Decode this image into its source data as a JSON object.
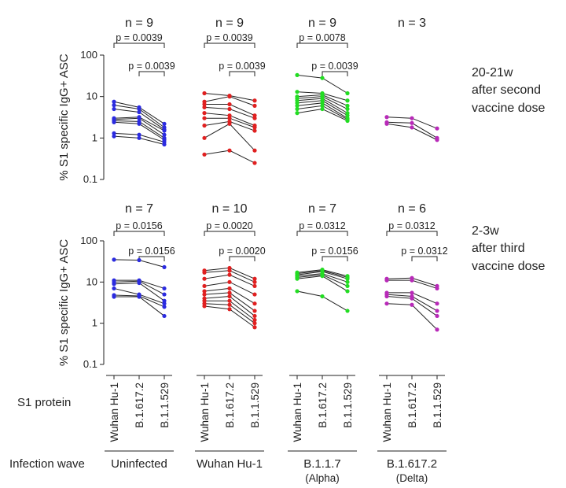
{
  "chart_data": {
    "type": "scatter",
    "title": "",
    "scale": "log",
    "ylabel": "% S1 specific IgG+ ASC",
    "ylim": [
      0.1,
      100
    ],
    "yticks": [
      "100",
      "10",
      "1",
      "0.1"
    ],
    "yticklabels_by_row": [
      [
        "100",
        "10",
        "1",
        "0.1"
      ],
      [
        "100",
        "10",
        "1",
        "0.1"
      ]
    ],
    "x_categories": [
      "Wuhan Hu-1",
      "B.1.617.2",
      "B.1.1.529"
    ],
    "s1_protein_label": "S1 protein",
    "infection_wave_label": "Infection wave",
    "groups": [
      {
        "name": "Uninfected",
        "subtitle": "",
        "color": "#2b2be0"
      },
      {
        "name": "Wuhan Hu-1",
        "subtitle": "",
        "color": "#e02020"
      },
      {
        "name": "B.1.1.7",
        "subtitle": "(Alpha)",
        "color": "#22dd22"
      },
      {
        "name": "B.1.617.2",
        "subtitle": "(Delta)",
        "color": "#b82ab8"
      }
    ],
    "rows": [
      {
        "label": [
          "20-21w",
          "after second",
          "vaccine dose"
        ],
        "panels": [
          {
            "n": "n = 9",
            "brackets": [
              {
                "from": 0,
                "to": 2,
                "p": "p = 0.0039"
              },
              {
                "from": 1,
                "to": 2,
                "p": "p = 0.0039"
              }
            ],
            "pairs": [
              [
                7.5,
                5.5,
                2.2
              ],
              [
                6.2,
                5.0,
                1.8
              ],
              [
                5.0,
                4.2,
                1.6
              ],
              [
                3.0,
                3.2,
                1.5
              ],
              [
                2.8,
                3.0,
                1.2
              ],
              [
                2.6,
                2.5,
                1.0
              ],
              [
                2.4,
                2.2,
                0.9
              ],
              [
                1.3,
                1.2,
                0.8
              ],
              [
                1.1,
                1.0,
                0.7
              ]
            ]
          },
          {
            "n": "n = 9",
            "brackets": [
              {
                "from": 0,
                "to": 2,
                "p": "p = 0.0039"
              },
              {
                "from": 1,
                "to": 2,
                "p": "p = 0.0039"
              }
            ],
            "pairs": [
              [
                12.0,
                10.5,
                8.0
              ],
              [
                7.5,
                10.0,
                6.0
              ],
              [
                6.5,
                6.5,
                3.5
              ],
              [
                5.5,
                5.0,
                3.0
              ],
              [
                4.0,
                3.5,
                2.0
              ],
              [
                3.0,
                3.0,
                1.8
              ],
              [
                2.0,
                2.5,
                1.5
              ],
              [
                1.0,
                2.2,
                0.5
              ],
              [
                0.4,
                0.5,
                0.25
              ]
            ]
          },
          {
            "n": "n = 9",
            "brackets": [
              {
                "from": 0,
                "to": 2,
                "p": "p = 0.0078"
              },
              {
                "from": 1,
                "to": 2,
                "p": "p = 0.0039"
              }
            ],
            "pairs": [
              [
                33.0,
                28.0,
                12.0
              ],
              [
                13.0,
                12.0,
                8.0
              ],
              [
                10.0,
                11.0,
                6.0
              ],
              [
                9.0,
                10.0,
                5.0
              ],
              [
                8.0,
                9.0,
                4.0
              ],
              [
                7.0,
                8.0,
                3.5
              ],
              [
                6.0,
                7.0,
                3.0
              ],
              [
                5.0,
                6.0,
                2.8
              ],
              [
                4.0,
                5.0,
                2.6
              ]
            ]
          },
          {
            "n": "n = 3",
            "brackets": [],
            "pairs": [
              [
                3.2,
                3.0,
                1.7
              ],
              [
                2.4,
                2.3,
                1.0
              ],
              [
                2.2,
                1.8,
                0.9
              ]
            ]
          }
        ]
      },
      {
        "label": [
          "2-3w",
          "after third",
          "vaccine dose"
        ],
        "panels": [
          {
            "n": "n = 7",
            "brackets": [
              {
                "from": 0,
                "to": 2,
                "p": "p = 0.0156"
              },
              {
                "from": 1,
                "to": 2,
                "p": "p = 0.0156"
              }
            ],
            "pairs": [
              [
                35.0,
                34.0,
                23.0
              ],
              [
                11.0,
                11.0,
                7.0
              ],
              [
                10.0,
                10.5,
                5.0
              ],
              [
                9.0,
                9.5,
                3.5
              ],
              [
                7.0,
                5.0,
                3.0
              ],
              [
                4.8,
                4.6,
                2.5
              ],
              [
                4.4,
                4.4,
                1.5
              ]
            ]
          },
          {
            "n": "n = 10",
            "brackets": [
              {
                "from": 0,
                "to": 2,
                "p": "p = 0.0020"
              },
              {
                "from": 1,
                "to": 2,
                "p": "p = 0.0020"
              }
            ],
            "pairs": [
              [
                19.0,
                22.0,
                12.0
              ],
              [
                17.0,
                19.0,
                10.0
              ],
              [
                12.0,
                15.0,
                8.0
              ],
              [
                8.0,
                10.0,
                5.0
              ],
              [
                6.0,
                7.0,
                3.0
              ],
              [
                5.0,
                5.5,
                2.0
              ],
              [
                4.0,
                4.5,
                1.5
              ],
              [
                3.5,
                3.5,
                1.2
              ],
              [
                3.0,
                2.8,
                1.0
              ],
              [
                2.6,
                2.2,
                0.8
              ]
            ]
          },
          {
            "n": "n = 7",
            "brackets": [
              {
                "from": 0,
                "to": 2,
                "p": "p = 0.0312"
              },
              {
                "from": 1,
                "to": 2,
                "p": "p = 0.0156"
              }
            ],
            "pairs": [
              [
                17.0,
                20.0,
                14.0
              ],
              [
                15.0,
                18.0,
                12.0
              ],
              [
                14.0,
                16.0,
                10.0
              ],
              [
                13.0,
                15.0,
                8.0
              ],
              [
                12.0,
                14.0,
                6.0
              ],
              [
                6.0,
                4.5,
                2.0
              ],
              [
                16.0,
                19.0,
                13.0
              ]
            ]
          },
          {
            "n": "n = 6",
            "brackets": [
              {
                "from": 0,
                "to": 2,
                "p": "p = 0.0312"
              },
              {
                "from": 1,
                "to": 2,
                "p": "p = 0.0312"
              }
            ],
            "pairs": [
              [
                12.0,
                12.5,
                8.0
              ],
              [
                11.0,
                11.0,
                7.0
              ],
              [
                5.5,
                5.5,
                3.0
              ],
              [
                5.0,
                4.5,
                2.0
              ],
              [
                4.5,
                4.0,
                1.5
              ],
              [
                3.0,
                2.8,
                0.7
              ]
            ]
          }
        ]
      }
    ]
  }
}
